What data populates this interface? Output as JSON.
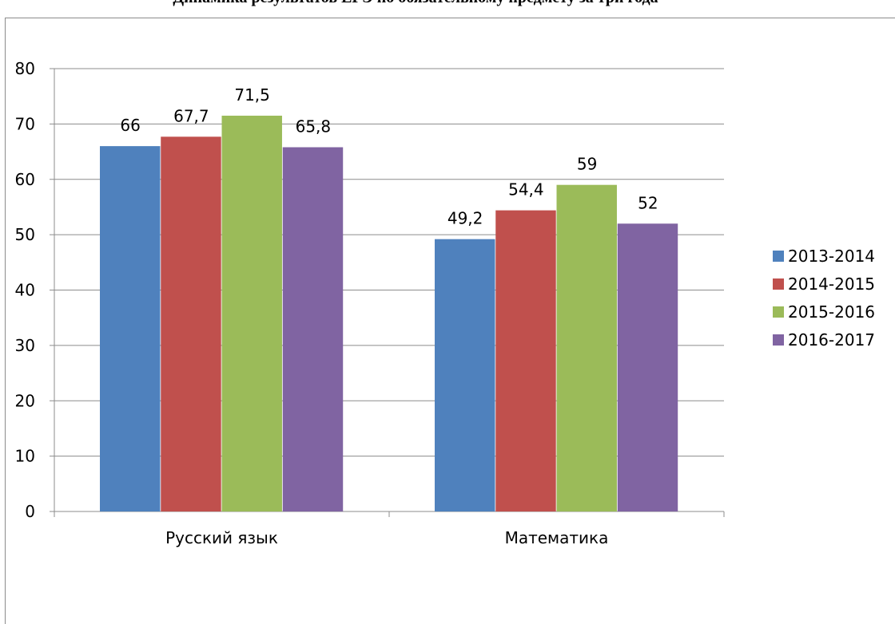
{
  "chart_data": {
    "type": "bar",
    "title": "Динамика результатов ЕГЭ по обязательному предмету за три года",
    "categories": [
      "Русский  язык",
      "Математика"
    ],
    "series": [
      {
        "name": "2013-2014",
        "values": [
          66,
          49.2
        ],
        "labels": [
          "66",
          "49,2"
        ],
        "color": "#4f81bd"
      },
      {
        "name": "2014-2015",
        "values": [
          67.7,
          54.4
        ],
        "labels": [
          "67,7",
          "54,4"
        ],
        "color": "#c0504d"
      },
      {
        "name": "2015-2016",
        "values": [
          71.5,
          59
        ],
        "labels": [
          "71,5",
          "59"
        ],
        "color": "#9bbb59"
      },
      {
        "name": "2016-2017",
        "values": [
          65.8,
          52
        ],
        "labels": [
          "65,8",
          "52"
        ],
        "color": "#8064a2"
      }
    ],
    "ylim": [
      0,
      80
    ],
    "yticks": [
      "0",
      "10",
      "20",
      "30",
      "40",
      "50",
      "60",
      "70",
      "80"
    ],
    "grid": true,
    "legend_position": "right"
  }
}
